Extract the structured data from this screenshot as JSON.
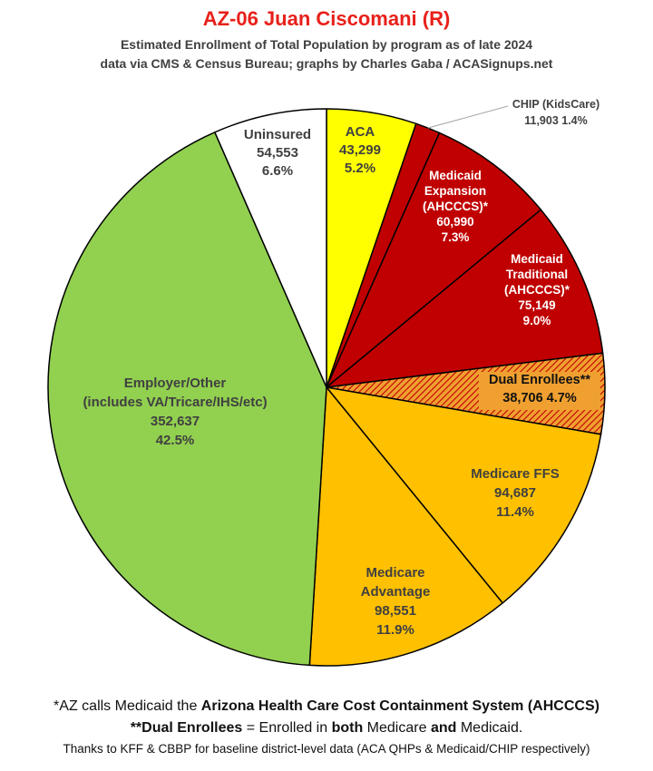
{
  "header": {
    "title": "AZ-06 Juan Ciscomani (R)",
    "subtitle_line1": "Estimated Enrollment of Total Population by program as of late 2024",
    "subtitle_line2": "data via CMS & Census Bureau; graphs by Charles Gaba / ACASignups.net"
  },
  "colors": {
    "title": "#e8201a",
    "aca": "#ffff00",
    "medicaid": "#c00000",
    "dual_hatch_bg": "#f0a030",
    "dual_hatch_line": "#c00000",
    "medicare": "#ffc000",
    "employer": "#92d050",
    "uninsured": "#ffffff"
  },
  "chart_data": {
    "type": "pie",
    "start": "12 o'clock, clockwise",
    "slices": [
      {
        "label": "ACA",
        "value": 43299,
        "value_text": "43,299",
        "percent": "5.2%",
        "color": "#ffff00"
      },
      {
        "label": "CHIP (KidsCare)",
        "value": 11903,
        "value_text": "11,903",
        "percent": "1.4%",
        "color": "#c00000"
      },
      {
        "label": "Medicaid Expansion (AHCCCS)*",
        "value": 60990,
        "value_text": "60,990",
        "percent": "7.3%",
        "color": "#c00000"
      },
      {
        "label": "Medicaid Traditional (AHCCCS)*",
        "value": 75149,
        "value_text": "75,149",
        "percent": "9.0%",
        "color": "#c00000"
      },
      {
        "label": "Dual Enrollees**",
        "value": 38706,
        "value_text": "38,706",
        "percent": "4.7%",
        "color": "hatch"
      },
      {
        "label": "Medicare FFS",
        "value": 94687,
        "value_text": "94,687",
        "percent": "11.4%",
        "color": "#ffc000"
      },
      {
        "label": "Medicare Advantage",
        "value": 98551,
        "value_text": "98,551",
        "percent": "11.9%",
        "color": "#ffc000"
      },
      {
        "label": "Employer/Other (includes VA/Tricare/IHS/etc)",
        "value": 352637,
        "value_text": "352,637",
        "percent": "42.5%",
        "color": "#92d050"
      },
      {
        "label": "Uninsured",
        "value": 54553,
        "value_text": "54,553",
        "percent": "6.6%",
        "color": "#ffffff"
      }
    ],
    "labels": {
      "aca": [
        "ACA",
        "43,299",
        "5.2%"
      ],
      "chip": [
        "CHIP (KidsCare)",
        "11,903 1.4%"
      ],
      "medicaid_expansion": [
        "Medicaid",
        "Expansion",
        "(AHCCCS)*",
        "60,990",
        "7.3%"
      ],
      "medicaid_traditional": [
        "Medicaid",
        "Traditional",
        "(AHCCCS)*",
        "75,149",
        "9.0%"
      ],
      "dual": [
        "Dual Enrollees**",
        "38,706 4.7%"
      ],
      "medicare_ffs": [
        "Medicare FFS",
        "94,687",
        "11.4%"
      ],
      "medicare_advantage": [
        "Medicare",
        "Advantage",
        "98,551",
        "11.9%"
      ],
      "employer": [
        "Employer/Other",
        "(includes VA/Tricare/IHS/etc)",
        "352,637",
        "42.5%"
      ],
      "uninsured": [
        "Uninsured",
        "54,553",
        "6.6%"
      ]
    }
  },
  "footer": {
    "line1_a": "*AZ calls Medicaid the ",
    "line1_b": "Arizona Health Care Cost Containment System (AHCCCS)",
    "line2_a": "**Dual Enrollees",
    "line2_b": " = Enrolled in ",
    "line2_c": "both",
    "line2_d": " Medicare ",
    "line2_e": "and",
    "line2_f": " Medicaid.",
    "line3": "Thanks to KFF & CBBP for baseline district-level data (ACA QHPs & Medicaid/CHIP respectively)"
  }
}
